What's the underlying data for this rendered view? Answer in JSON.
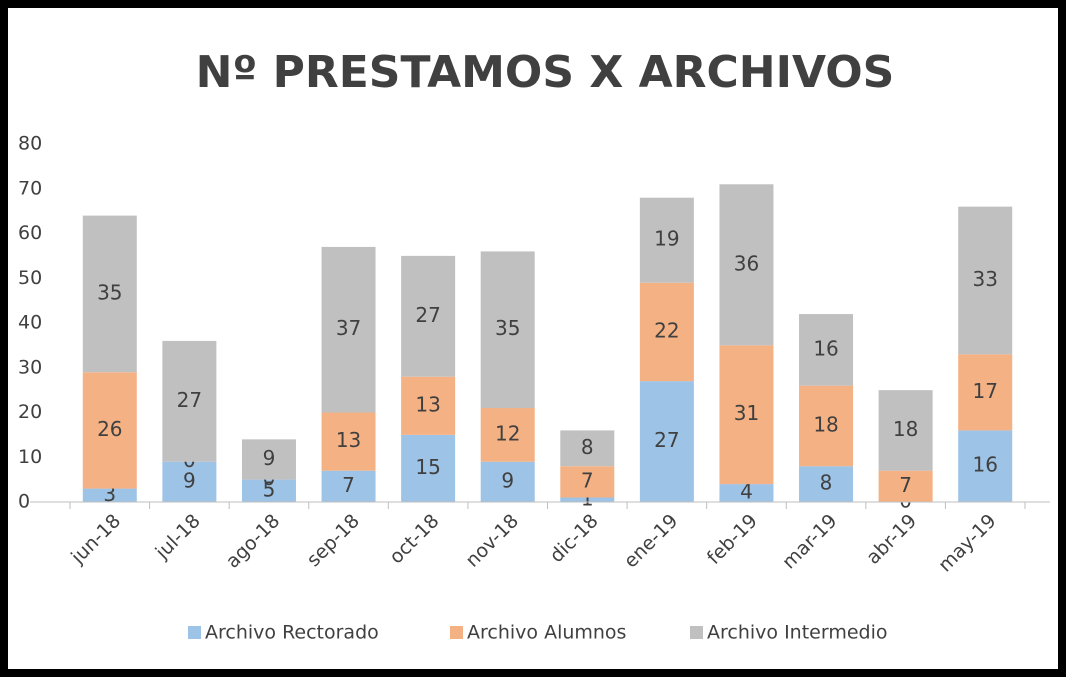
{
  "chart_data": {
    "type": "stacked_bar",
    "title": "Nº PRESTAMOS X ARCHIVOS",
    "categories": [
      "jun-18",
      "jul-18",
      "ago-18",
      "sep-18",
      "oct-18",
      "nov-18",
      "dic-18",
      "ene-19",
      "feb-19",
      "mar-19",
      "abr-19",
      "may-19"
    ],
    "series": [
      {
        "name": "Archivo Rectorado",
        "color": "#9dc3e6",
        "values": [
          3,
          9,
          5,
          7,
          15,
          9,
          1,
          27,
          4,
          8,
          0,
          16
        ]
      },
      {
        "name": "Archivo Alumnos",
        "color": "#f4b183",
        "values": [
          26,
          0,
          0,
          13,
          13,
          12,
          7,
          22,
          31,
          18,
          7,
          17
        ]
      },
      {
        "name": "Archivo Intermedio",
        "color": "#c0c0c0",
        "values": [
          35,
          27,
          9,
          37,
          27,
          35,
          8,
          19,
          36,
          16,
          18,
          33
        ]
      }
    ],
    "ylim": [
      0,
      80
    ],
    "yticks": [
      0,
      10,
      20,
      30,
      40,
      50,
      60,
      70,
      80
    ],
    "grid": false,
    "legend": "bottom"
  }
}
